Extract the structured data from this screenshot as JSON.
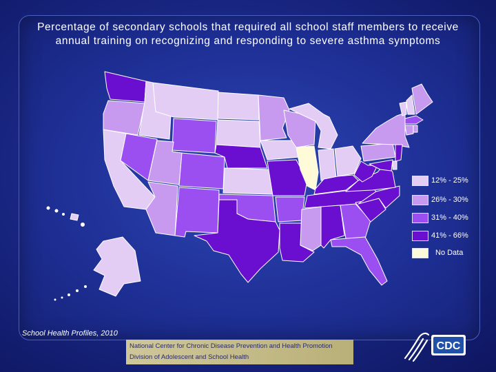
{
  "title": "Percentage of secondary schools that required all school staff members to receive annual training on recognizing and responding to severe asthma symptoms",
  "colors": {
    "12-25": "#e3cdf5",
    "26-30": "#c79aef",
    "31-40": "#9b4ff0",
    "41-66": "#6a0fd0",
    "no_data": "#fffbd8"
  },
  "legend": [
    {
      "label": "12% - 25%",
      "color": "#e3cdf5"
    },
    {
      "label": "26% - 30%",
      "color": "#c79aef"
    },
    {
      "label": "31% - 40%",
      "color": "#9b4ff0"
    },
    {
      "label": "41% - 66%",
      "color": "#6a0fd0"
    },
    {
      "label": "No Data",
      "color": "#fffbd8"
    }
  ],
  "states": {
    "WA": "41-66",
    "OR": "26-30",
    "CA": "12-25",
    "ID": "12-25",
    "NV": "31-40",
    "MT": "12-25",
    "WY": "31-40",
    "UT": "26-30",
    "AZ": "26-30",
    "CO": "31-40",
    "NM": "31-40",
    "ND": "12-25",
    "SD": "12-25",
    "NE": "41-66",
    "KS": "12-25",
    "OK": "31-40",
    "TX": "41-66",
    "MN": "26-30",
    "IA": "12-25",
    "MO": "41-66",
    "AR": "31-40",
    "LA": "41-66",
    "WI": "26-30",
    "IL": "no_data",
    "MI": "12-25",
    "IN": "12-25",
    "OH": "12-25",
    "KY": "41-66",
    "TN": "41-66",
    "MS": "26-30",
    "AL": "41-66",
    "GA": "31-40",
    "FL": "31-40",
    "SC": "41-66",
    "NC": "41-66",
    "VA": "41-66",
    "WV": "41-66",
    "PA": "26-30",
    "NY": "26-30",
    "VT": "12-25",
    "NH": "12-25",
    "ME": "26-30",
    "MA": "31-40",
    "CT": "26-30",
    "RI": "26-30",
    "NJ": "41-66",
    "DE": "12-25",
    "MD": "41-66",
    "AK": "12-25",
    "HI": "12-25"
  },
  "source": "School Health Profiles, 2010",
  "footer": {
    "line1": "National Center for Chronic Disease Prevention and Health Promotion",
    "line2": "Division of Adolescent and School Health"
  },
  "logo": {
    "text": "CDC",
    "icon": "hhs-eagle-icon"
  }
}
